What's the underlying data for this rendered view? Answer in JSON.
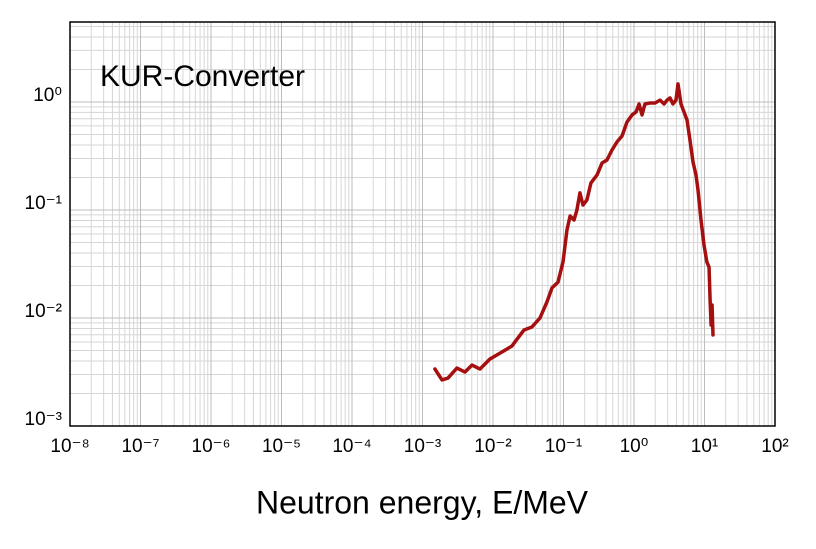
{
  "chart_data": {
    "type": "line",
    "title": "KUR-Converter",
    "x_label": "Neutron energy, E/MeV",
    "xlog": true,
    "ylog": true,
    "grid": true,
    "minor_grid": true,
    "color": "#a50f0f",
    "xlim": [
      1e-08,
      100
    ],
    "ylim": [
      0.001,
      5.5
    ],
    "xticks": [
      {
        "value": 1e-08,
        "label": "10⁻⁸"
      },
      {
        "value": 1e-07,
        "label": "10⁻⁷"
      },
      {
        "value": 1e-06,
        "label": "10⁻⁶"
      },
      {
        "value": 1e-05,
        "label": "10⁻⁵"
      },
      {
        "value": 0.0001,
        "label": "10⁻⁴"
      },
      {
        "value": 0.001,
        "label": "10⁻³"
      },
      {
        "value": 0.01,
        "label": "10⁻²"
      },
      {
        "value": 0.1,
        "label": "10⁻¹"
      },
      {
        "value": 1,
        "label": "10⁰"
      },
      {
        "value": 10,
        "label": "10¹"
      },
      {
        "value": 100,
        "label": "10²"
      }
    ],
    "yticks": [
      {
        "value": 0.001,
        "label": "10⁻³"
      },
      {
        "value": 0.01,
        "label": "10⁻²"
      },
      {
        "value": 0.1,
        "label": "10⁻¹"
      },
      {
        "value": 1,
        "label": "10⁰"
      }
    ],
    "x": [
      0.0015,
      0.00189,
      0.0023,
      0.00308,
      0.00401,
      0.00504,
      0.00654,
      0.00906,
      0.0134,
      0.0186,
      0.0226,
      0.0275,
      0.0357,
      0.0464,
      0.0583,
      0.0687,
      0.0836,
      0.0984,
      0.112,
      0.124,
      0.141,
      0.155,
      0.171,
      0.189,
      0.215,
      0.245,
      0.299,
      0.352,
      0.414,
      0.488,
      0.574,
      0.676,
      0.796,
      0.937,
      1.07,
      1.18,
      1.3,
      1.43,
      1.69,
      1.99,
      2.34,
      2.67,
      2.94,
      3.24,
      3.57,
      3.94,
      4.21,
      4.64,
      5.12,
      5.65,
      6.22,
      6.87,
      7.57,
      8.09,
      8.92,
      9.84,
      10.8,
      11.6,
      12.0,
      12.4,
      12.8,
      13.2
    ],
    "values": [
      0.00337,
      0.00267,
      0.00278,
      0.00344,
      0.00316,
      0.00367,
      0.00337,
      0.00417,
      0.00484,
      0.00551,
      0.00653,
      0.00774,
      0.00826,
      0.01,
      0.0141,
      0.019,
      0.0215,
      0.033,
      0.0653,
      0.088,
      0.0808,
      0.1,
      0.144,
      0.111,
      0.124,
      0.178,
      0.211,
      0.272,
      0.29,
      0.36,
      0.427,
      0.484,
      0.653,
      0.758,
      0.808,
      0.958,
      0.758,
      0.958,
      0.979,
      0.979,
      1.04,
      0.958,
      1.04,
      1.09,
      0.958,
      1.04,
      1.47,
      0.958,
      0.808,
      0.681,
      0.445,
      0.278,
      0.211,
      0.153,
      0.0808,
      0.0474,
      0.033,
      0.0296,
      0.0147,
      0.00861,
      0.0132,
      0.00697
    ]
  }
}
